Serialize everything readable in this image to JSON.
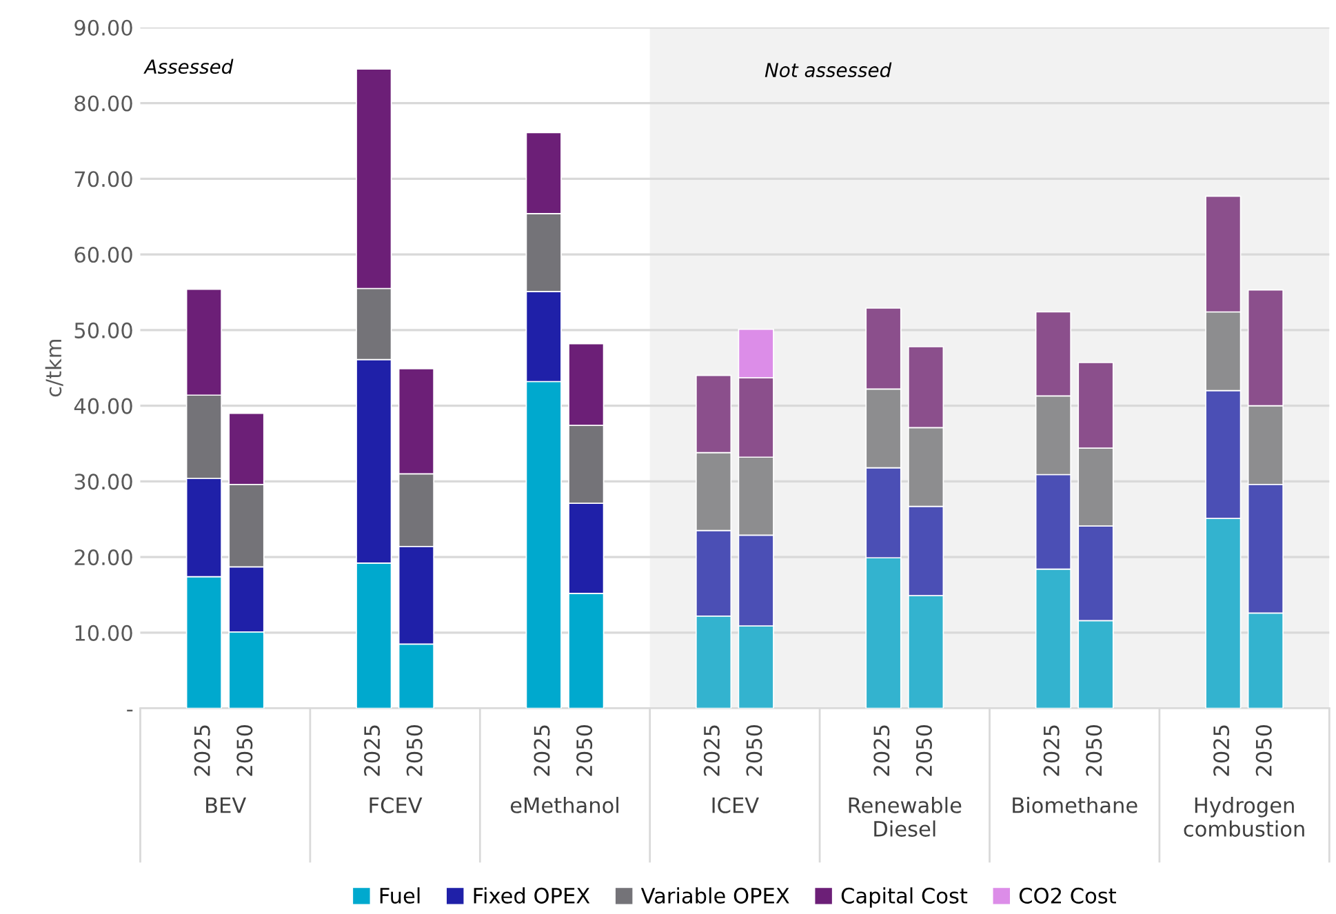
{
  "chart_data": {
    "type": "bar",
    "stacked": true,
    "ylabel": "c/tkm",
    "categories": [
      null,
      "2025",
      "2050",
      null,
      null,
      "2025",
      "2050",
      null,
      null,
      "2025",
      "2050",
      null,
      null,
      "2025",
      "2050",
      null,
      null,
      "2025",
      "2050",
      null,
      null,
      "2025",
      "2050",
      null,
      null,
      "2025",
      "2050",
      null
    ],
    "annotations": [
      "Assessed",
      "Not assessed",
      "BEV",
      "FCEV",
      "eMethanol",
      "ICEV",
      "Renewable\nDiesel",
      "Biomethane",
      "Hydrogen\ncombustion"
    ],
    "series": [
      {
        "name": "Fuel",
        "color": "#00a9ce",
        "colors": [
          "#00a9ce",
          "#00a9ce",
          "#00a9ce",
          "#00a9ce",
          "#00a9ce",
          "#00a9ce",
          "#00a9ce",
          "#00a9ce",
          "#00a9ce",
          "#00a9ce",
          "#00a9ce",
          "#00a9ce",
          "#33b3cf",
          "#33b3cf",
          "#33b3cf",
          "#33b3cf",
          "#33b3cf",
          "#33b3cf",
          "#33b3cf",
          "#33b3cf",
          "#33b3cf",
          "#33b3cf",
          "#33b3cf",
          "#33b3cf",
          "#33b3cf",
          "#33b3cf",
          "#33b3cf",
          "#33b3cf"
        ],
        "values": [
          null,
          17.4,
          10.1,
          null,
          null,
          19.2,
          8.5,
          null,
          null,
          43.2,
          15.2,
          null,
          null,
          12.2,
          10.9,
          null,
          null,
          19.9,
          14.9,
          null,
          null,
          18.4,
          11.6,
          null,
          null,
          25.1,
          12.6,
          null
        ]
      },
      {
        "name": "Fixed OPEX",
        "color": "#1f20a8",
        "colors": [
          "#1f20a8",
          "#1f20a8",
          "#1f20a8",
          "#1f20a8",
          "#1f20a8",
          "#1f20a8",
          "#1f20a8",
          "#1f20a8",
          "#1f20a8",
          "#1f20a8",
          "#1f20a8",
          "#1f20a8",
          "#4b4fb5",
          "#4b4fb5",
          "#4b4fb5",
          "#4b4fb5",
          "#4b4fb5",
          "#4b4fb5",
          "#4b4fb5",
          "#4b4fb5",
          "#4b4fb5",
          "#4b4fb5",
          "#4b4fb5",
          "#4b4fb5",
          "#4b4fb5",
          "#4b4fb5",
          "#4b4fb5",
          "#4b4fb5"
        ],
        "values": [
          null,
          13.0,
          8.6,
          null,
          null,
          26.9,
          12.9,
          null,
          null,
          11.9,
          11.9,
          null,
          null,
          11.3,
          12.0,
          null,
          null,
          11.9,
          11.8,
          null,
          null,
          12.5,
          12.5,
          null,
          null,
          16.9,
          17.0,
          null
        ]
      },
      {
        "name": "Variable OPEX",
        "color": "#747378",
        "colors": [
          "#747378",
          "#747378",
          "#747378",
          "#747378",
          "#747378",
          "#747378",
          "#747378",
          "#747378",
          "#747378",
          "#747378",
          "#747378",
          "#747378",
          "#8d8d8f",
          "#8d8d8f",
          "#8d8d8f",
          "#8d8d8f",
          "#8d8d8f",
          "#8d8d8f",
          "#8d8d8f",
          "#8d8d8f",
          "#8d8d8f",
          "#8d8d8f",
          "#8d8d8f",
          "#8d8d8f",
          "#8d8d8f",
          "#8d8d8f",
          "#8d8d8f",
          "#8d8d8f"
        ],
        "values": [
          null,
          11.0,
          10.9,
          null,
          null,
          9.4,
          9.6,
          null,
          null,
          10.3,
          10.3,
          null,
          null,
          10.3,
          10.3,
          null,
          null,
          10.4,
          10.4,
          null,
          null,
          10.4,
          10.3,
          null,
          null,
          10.4,
          10.4,
          null
        ]
      },
      {
        "name": "Capital Cost",
        "color": "#6c1f77",
        "colors": [
          "#6c1f77",
          "#6c1f77",
          "#6c1f77",
          "#6c1f77",
          "#6c1f77",
          "#6c1f77",
          "#6c1f77",
          "#6c1f77",
          "#6c1f77",
          "#6c1f77",
          "#6c1f77",
          "#6c1f77",
          "#8b4f8c",
          "#8b4f8c",
          "#8b4f8c",
          "#8b4f8c",
          "#8b4f8c",
          "#8b4f8c",
          "#8b4f8c",
          "#8b4f8c",
          "#8b4f8c",
          "#8b4f8c",
          "#8b4f8c",
          "#8b4f8c",
          "#8b4f8c",
          "#8b4f8c",
          "#8b4f8c",
          "#8b4f8c"
        ],
        "values": [
          null,
          14.0,
          9.4,
          null,
          null,
          29.0,
          13.9,
          null,
          null,
          10.7,
          10.8,
          null,
          null,
          10.2,
          10.5,
          null,
          null,
          10.7,
          10.7,
          null,
          null,
          11.1,
          11.3,
          null,
          null,
          15.3,
          15.3,
          null
        ]
      },
      {
        "name": "CO2 Cost",
        "color": "#dc8de8",
        "values": [
          null,
          null,
          null,
          null,
          null,
          null,
          null,
          null,
          null,
          null,
          null,
          null,
          null,
          null,
          6.4,
          null,
          null,
          null,
          null,
          null,
          null,
          null,
          null,
          null,
          null,
          null,
          null,
          null
        ]
      }
    ],
    "ylim": [
      0,
      90
    ],
    "yticks": [
      {
        "value": 0,
        "label": "-"
      },
      {
        "value": 10,
        "label": "10.00"
      },
      {
        "value": 20,
        "label": "20.00"
      },
      {
        "value": 30,
        "label": "30.00"
      },
      {
        "value": 40,
        "label": "40.00"
      },
      {
        "value": 50,
        "label": "50.00"
      },
      {
        "value": 60,
        "label": "60.00"
      },
      {
        "value": 70,
        "label": "70.00"
      },
      {
        "value": 80,
        "label": "80.00"
      },
      {
        "value": 90,
        "label": "90.00"
      }
    ],
    "grid": "y",
    "legend": "bottom"
  }
}
